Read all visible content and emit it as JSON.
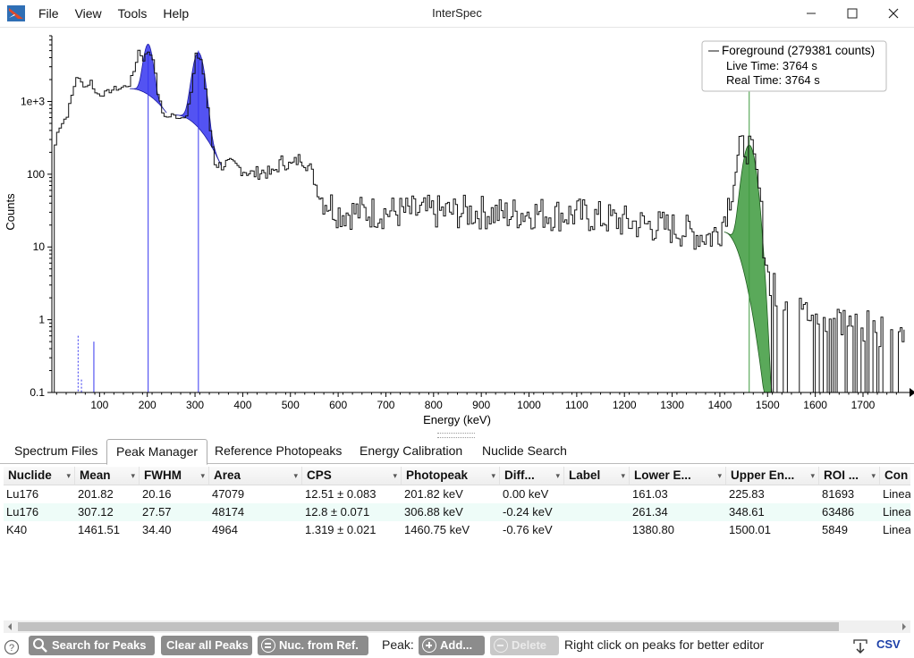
{
  "window": {
    "title": "InterSpec"
  },
  "menu": [
    "File",
    "View",
    "Tools",
    "Help"
  ],
  "chart_data": {
    "type": "line",
    "title": "",
    "xlabel": "Energy (keV)",
    "ylabel": "Counts",
    "x_ticks": [
      100,
      200,
      300,
      400,
      500,
      600,
      700,
      800,
      900,
      1000,
      1100,
      1200,
      1300,
      1400,
      1500,
      1600,
      1700
    ],
    "y_ticks": [
      "0.1",
      "1",
      "10",
      "100",
      "1e+3"
    ],
    "y_scale": "log",
    "xlim": [
      0,
      1790
    ],
    "ylim": [
      0.1,
      8000
    ],
    "legend": {
      "position": "top-right",
      "series": "Foreground (279381 counts)",
      "live_time": "Live Time: 3764 s",
      "real_time": "Real Time: 3764 s"
    },
    "series": [
      {
        "name": "Foreground (279381 counts)",
        "color": "#000000",
        "x": [
          2,
          5,
          10,
          15,
          20,
          30,
          40,
          50,
          60,
          70,
          80,
          90,
          100,
          110,
          120,
          130,
          140,
          150,
          160,
          170,
          180,
          190,
          200,
          210,
          220,
          230,
          240,
          250,
          260,
          270,
          280,
          290,
          300,
          310,
          320,
          330,
          340,
          350,
          360,
          380,
          400,
          420,
          440,
          460,
          480,
          500,
          520,
          540,
          560,
          580,
          600,
          650,
          700,
          750,
          800,
          850,
          900,
          950,
          1000,
          1050,
          1100,
          1150,
          1200,
          1250,
          1300,
          1350,
          1380,
          1400,
          1420,
          1440,
          1450,
          1460,
          1470,
          1480,
          1490,
          1500,
          1520,
          1550,
          1600,
          1650,
          1700,
          1750,
          1790
        ],
        "y": [
          0.1,
          250,
          400,
          450,
          500,
          650,
          1200,
          2200,
          1800,
          1600,
          1900,
          1300,
          1250,
          1300,
          1400,
          1500,
          1500,
          1600,
          1700,
          2600,
          5000,
          3800,
          4900,
          4000,
          1300,
          700,
          600,
          650,
          620,
          600,
          680,
          1300,
          4300,
          3800,
          1500,
          400,
          150,
          130,
          140,
          130,
          115,
          100,
          110,
          100,
          150,
          130,
          170,
          120,
          50,
          40,
          30,
          30,
          30,
          30,
          30,
          30,
          30,
          28,
          30,
          28,
          28,
          25,
          22,
          20,
          18,
          15,
          14,
          18,
          50,
          200,
          250,
          230,
          130,
          60,
          12,
          4,
          2,
          1.5,
          1.2,
          1.0,
          0.8,
          0.7,
          0.6
        ]
      }
    ],
    "peaks": [
      {
        "mean": 201.82,
        "color": "#3535f0"
      },
      {
        "mean": 307.12,
        "color": "#3535f0"
      },
      {
        "mean": 1461.51,
        "color": "#3d9a3d"
      }
    ]
  },
  "tabs": [
    "Spectrum Files",
    "Peak Manager",
    "Reference Photopeaks",
    "Energy Calibration",
    "Nuclide Search"
  ],
  "active_tab": "Peak Manager",
  "table": {
    "headers": [
      "Nuclide",
      "Mean",
      "FWHM",
      "Area",
      "CPS",
      "Photopeak",
      "Diff...",
      "Label",
      "Lower E...",
      "Upper En...",
      "ROI ...",
      "Con"
    ],
    "rows": [
      [
        "Lu176",
        "201.82",
        "20.16",
        "47079",
        "12.51 ± 0.083",
        "201.82 keV",
        "0.00 keV",
        "",
        "161.03",
        "225.83",
        "81693",
        "Linea"
      ],
      [
        "Lu176",
        "307.12",
        "27.57",
        "48174",
        "12.8 ± 0.071",
        "306.88 keV",
        "-0.24 keV",
        "",
        "261.34",
        "348.61",
        "63486",
        "Linea"
      ],
      [
        "K40",
        "1461.51",
        "34.40",
        "4964",
        "1.319 ± 0.021",
        "1460.75 keV",
        "-0.76 keV",
        "",
        "1380.80",
        "1500.01",
        "5849",
        "Linea"
      ]
    ]
  },
  "toolbar": {
    "search_peaks": "Search for Peaks",
    "clear_peaks": "Clear all Peaks",
    "nuc_from_ref": "Nuc. from Ref.",
    "peak_label": "Peak:",
    "add": "Add...",
    "delete": "Delete",
    "hint": "Right click on peaks for better editor",
    "csv": "CSV"
  }
}
